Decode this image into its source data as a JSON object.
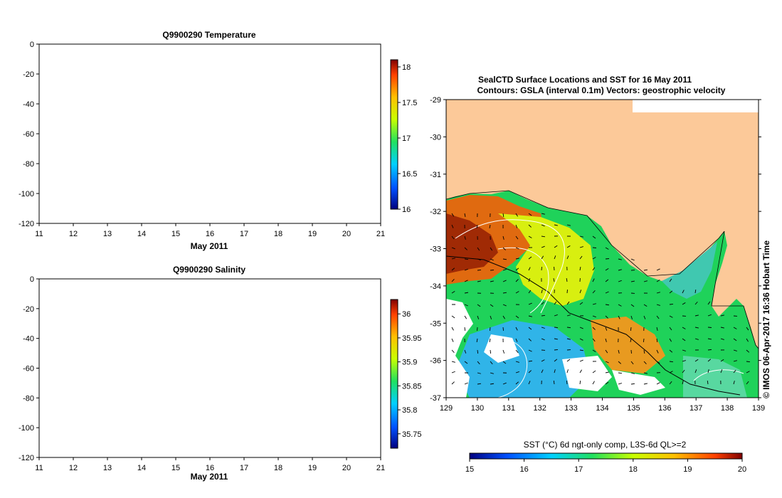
{
  "chart_data": [
    {
      "type": "scatter",
      "title": "Q9900290  Temperature",
      "xlabel": "May 2011",
      "ylabel": "",
      "x_ticks": [
        "11",
        "12",
        "13",
        "14",
        "15",
        "16",
        "17",
        "18",
        "19",
        "20",
        "21"
      ],
      "y_ticks": [
        "0",
        "-20",
        "-40",
        "-60",
        "-80",
        "-100",
        "-120"
      ],
      "xlim": [
        11,
        21
      ],
      "ylim": [
        -120,
        0
      ],
      "grid": false,
      "series": [],
      "colorbar": {
        "range": [
          16,
          18.1
        ],
        "ticks": [
          "18",
          "17.5",
          "17",
          "16.5",
          "16"
        ],
        "colors": [
          "#00007f",
          "#0060ff",
          "#00d0ff",
          "#40ff80",
          "#d0ff00",
          "#ffc000",
          "#ff4000",
          "#7f0000"
        ]
      }
    },
    {
      "type": "scatter",
      "title": "Q9900290  Salinity",
      "xlabel": "May 2011",
      "ylabel": "",
      "x_ticks": [
        "11",
        "12",
        "13",
        "14",
        "15",
        "16",
        "17",
        "18",
        "19",
        "20",
        "21"
      ],
      "y_ticks": [
        "0",
        "-20",
        "-40",
        "-60",
        "-80",
        "-100",
        "-120"
      ],
      "xlim": [
        11,
        21
      ],
      "ylim": [
        -120,
        0
      ],
      "grid": false,
      "series": [],
      "colorbar": {
        "range": [
          35.72,
          36.03
        ],
        "ticks": [
          "36",
          "35.95",
          "35.9",
          "35.85",
          "35.8",
          "35.75"
        ],
        "colors": [
          "#00007f",
          "#0060ff",
          "#00d0ff",
          "#40ff80",
          "#d0ff00",
          "#ffc000",
          "#ff4000",
          "#7f0000"
        ]
      }
    },
    {
      "type": "heatmap",
      "title": "SealCTD Surface Locations and SST for 16 May 2011",
      "subtitle": "Contours: GSLA (interval 0.1m) Vectors: geostrophic velocity",
      "xlabel": "",
      "ylabel": "",
      "x_ticks": [
        "129",
        "130",
        "131",
        "132",
        "133",
        "134",
        "135",
        "136",
        "137",
        "138",
        "139"
      ],
      "y_ticks": [
        "-29",
        "-30",
        "-31",
        "-32",
        "-33",
        "-34",
        "-35",
        "-36",
        "-37"
      ],
      "xlim": [
        129,
        139
      ],
      "ylim": [
        -37,
        -29
      ],
      "land_color": "#fcc999",
      "colorbar": {
        "label": "SST (°C) 6d ngt-only comp, L3S-6d QL>=2",
        "range": [
          15,
          20
        ],
        "ticks": [
          "15",
          "16",
          "17",
          "18",
          "19",
          "20"
        ],
        "colors": [
          "#00007f",
          "#0060ff",
          "#00d0ff",
          "#40ff80",
          "#d0ff00",
          "#ffc000",
          "#ff4000",
          "#7f0000"
        ]
      },
      "credit": "© IMOS 06-Apr-2017 16:36 Hobart Time"
    }
  ]
}
